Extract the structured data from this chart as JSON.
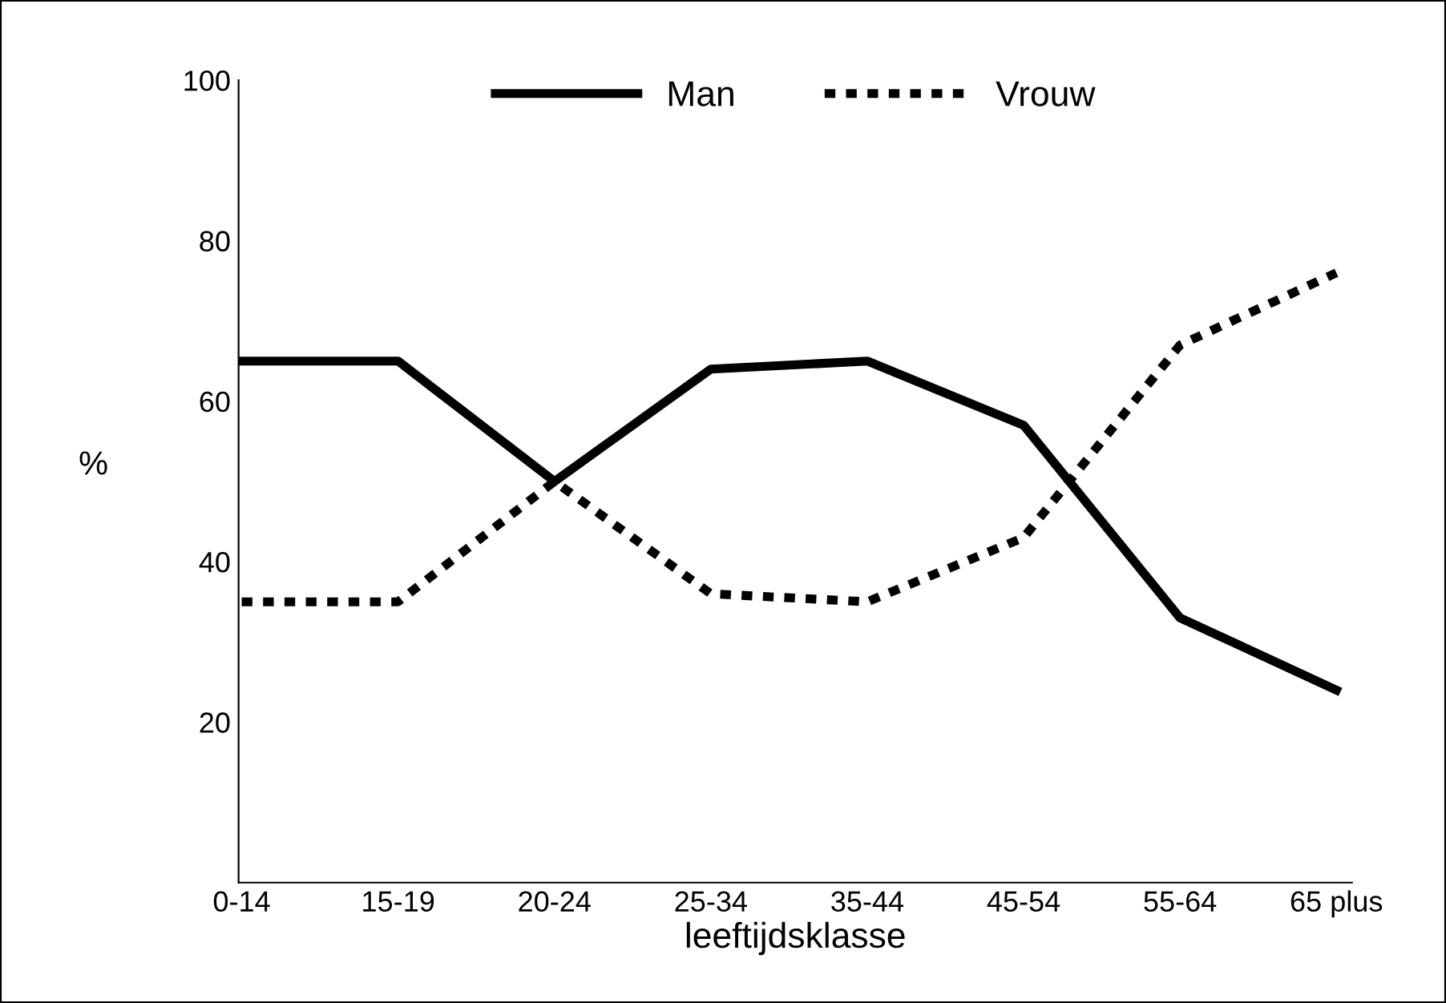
{
  "chart_data": {
    "type": "line",
    "xlabel": "leeftijdsklasse",
    "ylabel": "%",
    "categories": [
      "0-14",
      "15-19",
      "20-24",
      "25-34",
      "35-44",
      "45-54",
      "55-64",
      "65 plus"
    ],
    "series": [
      {
        "name": "Man",
        "color": "#000000",
        "line_style": "solid",
        "values": [
          65,
          65,
          50,
          64,
          65,
          57,
          33,
          24
        ]
      },
      {
        "name": "Vrouw",
        "color": "#000000",
        "line_style": "dotted",
        "values": [
          35,
          35,
          50,
          36,
          35,
          43,
          67,
          76
        ]
      }
    ],
    "ylim": [
      0,
      100
    ],
    "yticks": [
      20,
      40,
      60,
      80,
      100
    ],
    "grid": false,
    "legend": "top",
    "marker": "none"
  }
}
